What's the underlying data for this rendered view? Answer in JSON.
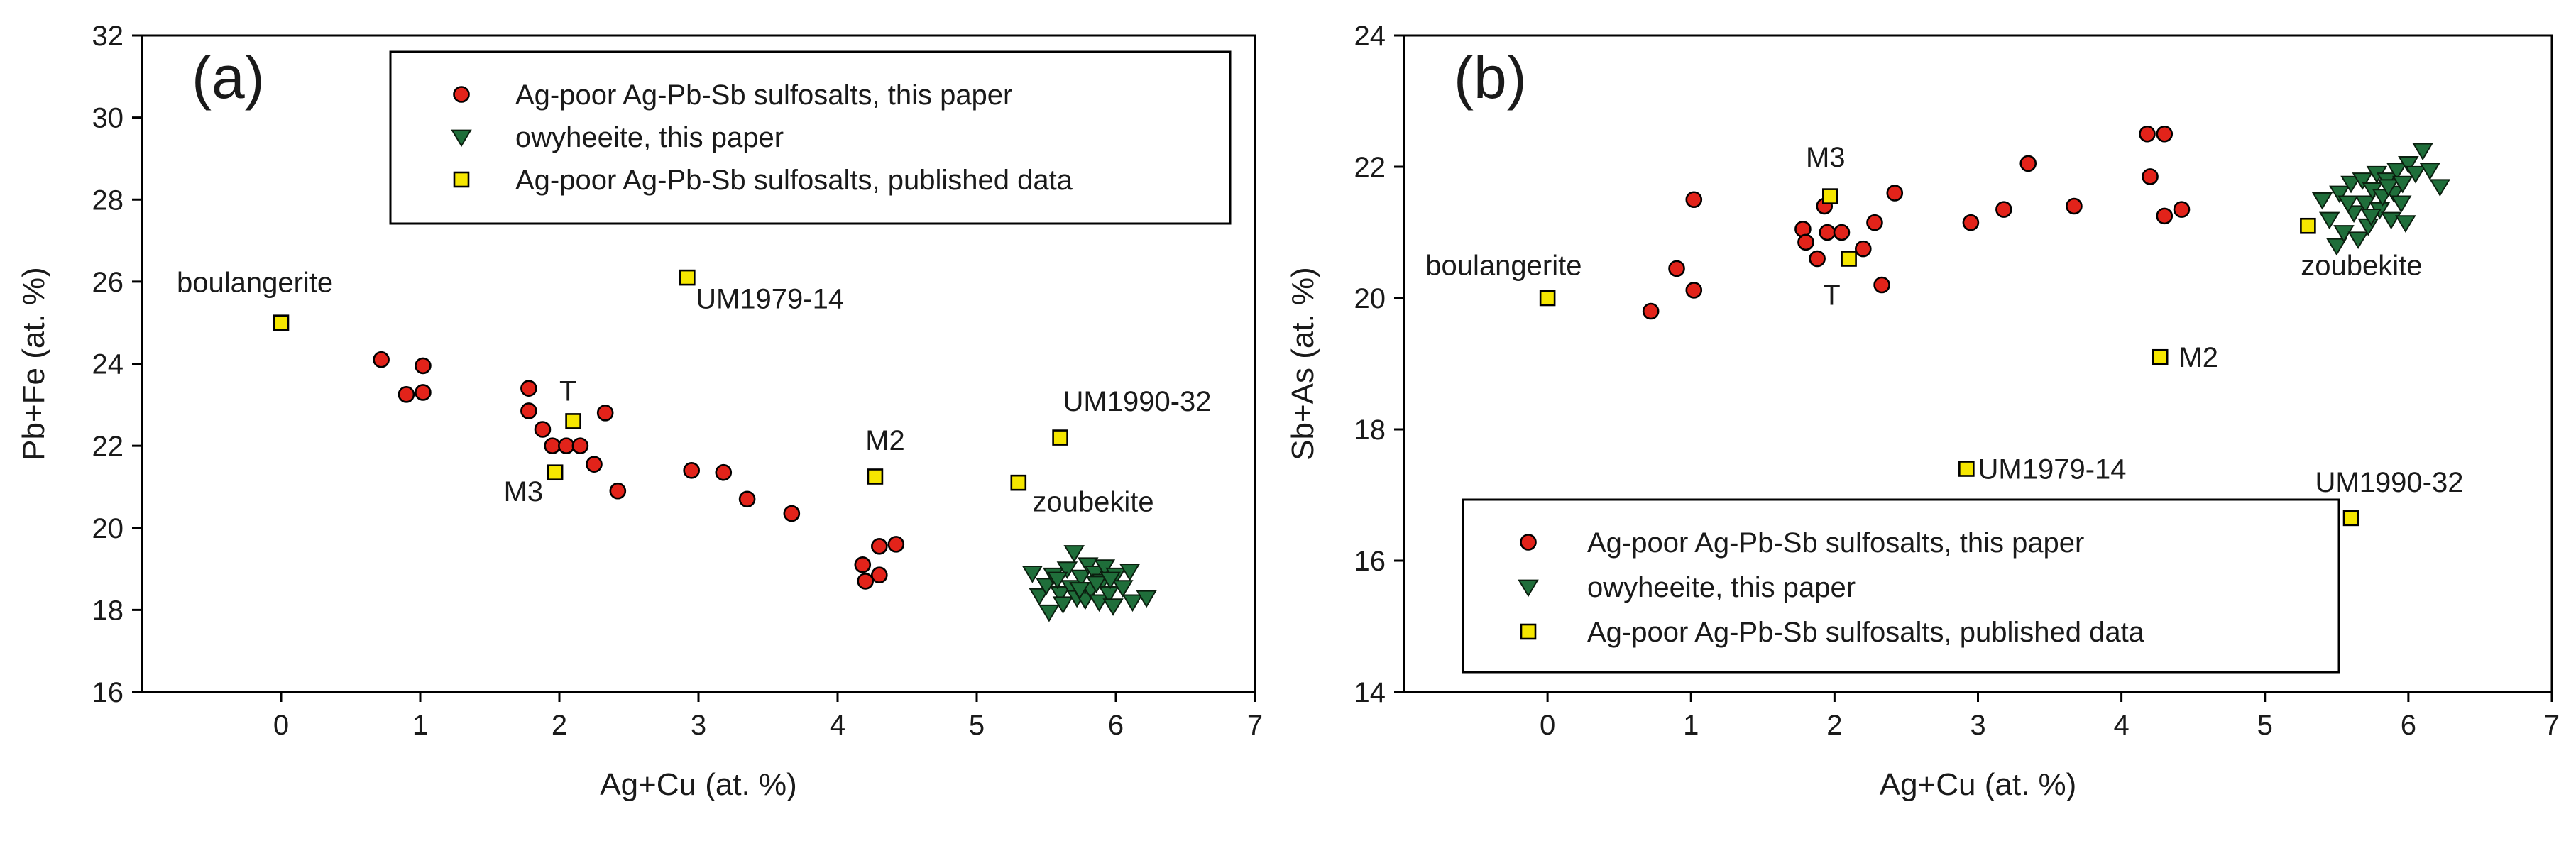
{
  "chart_data": [
    {
      "type": "scatter",
      "panel_label": "(a)",
      "xlabel": "Ag+Cu (at. %)",
      "ylabel": "Pb+Fe (at. %)",
      "xlim": [
        -1,
        7
      ],
      "ylim": [
        16,
        32
      ],
      "xticks": [
        0,
        1,
        2,
        3,
        4,
        5,
        6,
        7
      ],
      "yticks": [
        16,
        18,
        20,
        22,
        24,
        26,
        28,
        30,
        32
      ],
      "grid": false,
      "legend_position": "top-right",
      "series": [
        {
          "name": "Ag-poor Ag-Pb-Sb sulfosalts, this paper",
          "marker": "circle",
          "color": "#e2231a",
          "points": [
            [
              0.72,
              24.1
            ],
            [
              0.9,
              23.25
            ],
            [
              1.02,
              23.95
            ],
            [
              1.02,
              23.3
            ],
            [
              1.78,
              23.4
            ],
            [
              1.78,
              22.85
            ],
            [
              1.88,
              22.4
            ],
            [
              1.95,
              22.0
            ],
            [
              2.05,
              22.0
            ],
            [
              2.15,
              22.0
            ],
            [
              2.25,
              21.55
            ],
            [
              2.33,
              22.8
            ],
            [
              2.42,
              20.9
            ],
            [
              2.95,
              21.4
            ],
            [
              3.18,
              21.35
            ],
            [
              3.35,
              20.7
            ],
            [
              3.67,
              20.35
            ],
            [
              4.18,
              19.1
            ],
            [
              4.2,
              18.7
            ],
            [
              4.3,
              18.85
            ],
            [
              4.3,
              19.55
            ],
            [
              4.42,
              19.6
            ]
          ]
        },
        {
          "name": "owyheeite, this paper",
          "marker": "triangle-down",
          "color": "#1f6e3a",
          "points": [
            [
              5.4,
              18.9
            ],
            [
              5.45,
              18.35
            ],
            [
              5.5,
              18.6
            ],
            [
              5.52,
              17.95
            ],
            [
              5.55,
              18.85
            ],
            [
              5.6,
              18.4
            ],
            [
              5.62,
              18.15
            ],
            [
              5.65,
              19.0
            ],
            [
              5.68,
              18.55
            ],
            [
              5.7,
              19.4
            ],
            [
              5.72,
              18.3
            ],
            [
              5.75,
              18.8
            ],
            [
              5.78,
              18.25
            ],
            [
              5.8,
              19.1
            ],
            [
              5.82,
              18.5
            ],
            [
              5.85,
              18.9
            ],
            [
              5.88,
              18.2
            ],
            [
              5.9,
              18.7
            ],
            [
              5.92,
              19.05
            ],
            [
              5.95,
              18.4
            ],
            [
              5.98,
              18.1
            ],
            [
              6.0,
              18.85
            ],
            [
              6.05,
              18.55
            ],
            [
              6.1,
              18.95
            ],
            [
              6.12,
              18.2
            ],
            [
              6.22,
              18.3
            ],
            [
              5.58,
              18.75
            ],
            [
              5.74,
              18.5
            ],
            [
              5.86,
              18.65
            ],
            [
              5.96,
              18.75
            ]
          ]
        },
        {
          "name": "Ag-poor Ag-Pb-Sb sulfosalts, published data",
          "marker": "square",
          "color": "#f5e600",
          "points": [
            [
              0.0,
              25.0
            ],
            [
              2.1,
              22.6
            ],
            [
              1.97,
              21.35
            ],
            [
              2.92,
              26.1
            ],
            [
              4.27,
              21.25
            ],
            [
              5.3,
              21.1
            ],
            [
              5.6,
              22.2
            ]
          ]
        }
      ],
      "annotations": [
        {
          "text": "boulangerite",
          "x": -0.75,
          "y": 25.75
        },
        {
          "text": "T",
          "x": 2.0,
          "y": 23.1
        },
        {
          "text": "M3",
          "x": 1.6,
          "y": 20.65
        },
        {
          "text": "UM1979-14",
          "x": 2.98,
          "y": 25.35
        },
        {
          "text": "M2",
          "x": 4.2,
          "y": 21.9
        },
        {
          "text": "UM1990-32",
          "x": 5.62,
          "y": 22.85
        },
        {
          "text": "zoubekite",
          "x": 5.4,
          "y": 20.4
        }
      ]
    },
    {
      "type": "scatter",
      "panel_label": "(b)",
      "xlabel": "Ag+Cu (at. %)",
      "ylabel": "Sb+As (at. %)",
      "xlim": [
        -1,
        7
      ],
      "ylim": [
        14,
        24
      ],
      "xticks": [
        0,
        1,
        2,
        3,
        4,
        5,
        6,
        7
      ],
      "yticks": [
        14,
        16,
        18,
        20,
        22,
        24
      ],
      "grid": false,
      "legend_position": "bottom-left",
      "series": [
        {
          "name": "Ag-poor Ag-Pb-Sb sulfosalts, this paper",
          "marker": "circle",
          "color": "#e2231a",
          "points": [
            [
              0.72,
              19.8
            ],
            [
              0.9,
              20.45
            ],
            [
              1.02,
              20.12
            ],
            [
              1.02,
              21.5
            ],
            [
              1.78,
              21.05
            ],
            [
              1.8,
              20.85
            ],
            [
              1.88,
              20.6
            ],
            [
              1.93,
              21.4
            ],
            [
              1.95,
              21.0
            ],
            [
              2.05,
              21.0
            ],
            [
              2.2,
              20.75
            ],
            [
              2.28,
              21.15
            ],
            [
              2.33,
              20.2
            ],
            [
              2.42,
              21.6
            ],
            [
              2.95,
              21.15
            ],
            [
              3.18,
              21.35
            ],
            [
              3.35,
              22.05
            ],
            [
              3.67,
              21.4
            ],
            [
              4.18,
              22.5
            ],
            [
              4.2,
              21.85
            ],
            [
              4.3,
              21.25
            ],
            [
              4.3,
              22.5
            ],
            [
              4.42,
              21.35
            ]
          ]
        },
        {
          "name": "owyheeite, this paper",
          "marker": "triangle-down",
          "color": "#1f6e3a",
          "points": [
            [
              5.4,
              21.5
            ],
            [
              5.45,
              21.2
            ],
            [
              5.5,
              20.8
            ],
            [
              5.52,
              21.6
            ],
            [
              5.55,
              21.0
            ],
            [
              5.6,
              21.75
            ],
            [
              5.62,
              21.3
            ],
            [
              5.65,
              20.9
            ],
            [
              5.68,
              21.8
            ],
            [
              5.7,
              21.45
            ],
            [
              5.72,
              21.1
            ],
            [
              5.75,
              21.65
            ],
            [
              5.78,
              21.9
            ],
            [
              5.8,
              21.35
            ],
            [
              5.82,
              21.55
            ],
            [
              5.85,
              21.8
            ],
            [
              5.88,
              21.2
            ],
            [
              5.9,
              21.6
            ],
            [
              5.92,
              21.95
            ],
            [
              5.95,
              21.45
            ],
            [
              5.98,
              21.15
            ],
            [
              6.0,
              22.05
            ],
            [
              6.05,
              21.9
            ],
            [
              6.1,
              22.25
            ],
            [
              6.15,
              21.95
            ],
            [
              6.22,
              21.7
            ],
            [
              5.58,
              21.45
            ],
            [
              5.74,
              21.25
            ],
            [
              5.86,
              21.7
            ],
            [
              5.96,
              21.75
            ]
          ]
        },
        {
          "name": "Ag-poor Ag-Pb-Sb sulfosalts, published data",
          "marker": "square",
          "color": "#f5e600",
          "points": [
            [
              0.0,
              20.0
            ],
            [
              1.97,
              21.55
            ],
            [
              2.1,
              20.6
            ],
            [
              4.27,
              19.1
            ],
            [
              2.92,
              17.4
            ],
            [
              5.3,
              21.1
            ],
            [
              5.6,
              16.65
            ]
          ]
        }
      ],
      "annotations": [
        {
          "text": "M3",
          "x": 1.8,
          "y": 22.0
        },
        {
          "text": "boulangerite",
          "x": -0.85,
          "y": 20.35
        },
        {
          "text": "T",
          "x": 1.92,
          "y": 19.9
        },
        {
          "text": "zoubekite",
          "x": 5.25,
          "y": 20.35
        },
        {
          "text": "M2",
          "x": 4.4,
          "y": 18.95
        },
        {
          "text": "UM1979-14",
          "x": 3.0,
          "y": 17.25
        },
        {
          "text": "UM1990-32",
          "x": 5.35,
          "y": 17.05
        }
      ]
    }
  ]
}
